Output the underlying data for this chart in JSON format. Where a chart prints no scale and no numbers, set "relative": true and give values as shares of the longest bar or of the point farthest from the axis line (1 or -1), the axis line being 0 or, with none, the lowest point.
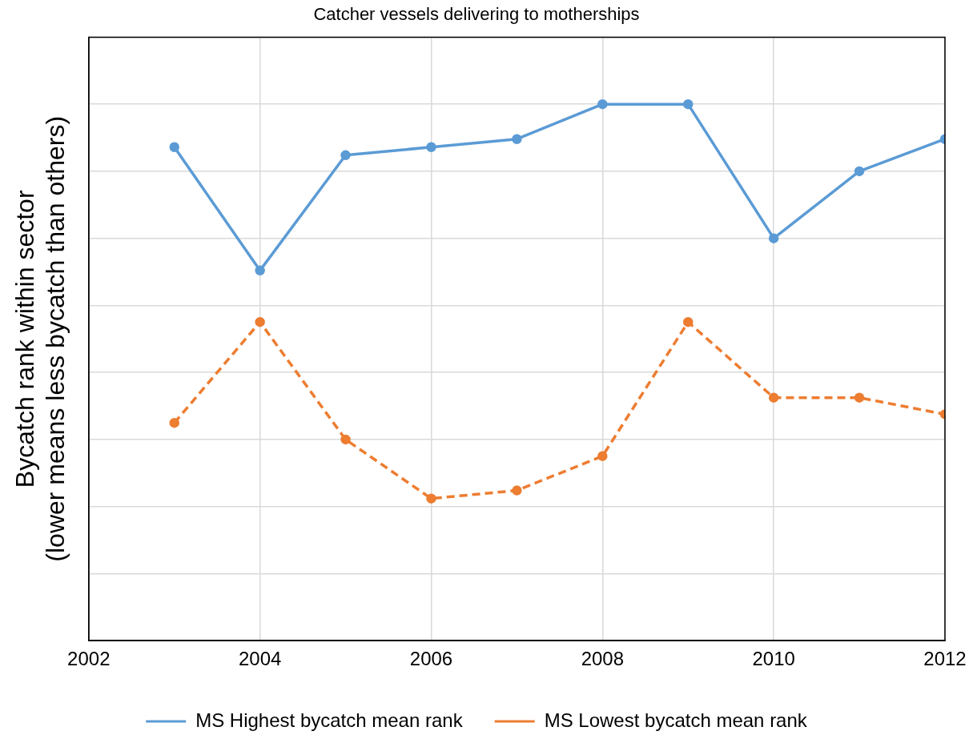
{
  "chart_data": {
    "type": "line",
    "title": "Catcher vessels delivering to motherships",
    "ylabel": "Bycatch rank within sector\n(lower means less bycatch than others)",
    "x": [
      2003,
      2004,
      2005,
      2006,
      2007,
      2008,
      2009,
      2010,
      2011,
      2012
    ],
    "xlim": [
      2002,
      2012
    ],
    "xticks": [
      2002,
      2004,
      2006,
      2008,
      2010,
      2012
    ],
    "relative": true,
    "grid": true,
    "legend": "bottom",
    "marker": "circle",
    "series": [
      {
        "name": "MS Highest bycatch mean rank",
        "color": "#5b9bd5",
        "line_style": "solid",
        "values": [
          0.92,
          0.69,
          0.905,
          0.92,
          0.935,
          1,
          1,
          0.75,
          0.875,
          0.935
        ]
      },
      {
        "name": "MS Lowest bycatch mean rank",
        "color": "#ed7d31",
        "line_style": "dashed",
        "values": [
          0.406,
          0.594,
          0.375,
          0.265,
          0.28,
          0.344,
          0.594,
          0.453,
          0.453,
          0.422
        ]
      }
    ]
  }
}
